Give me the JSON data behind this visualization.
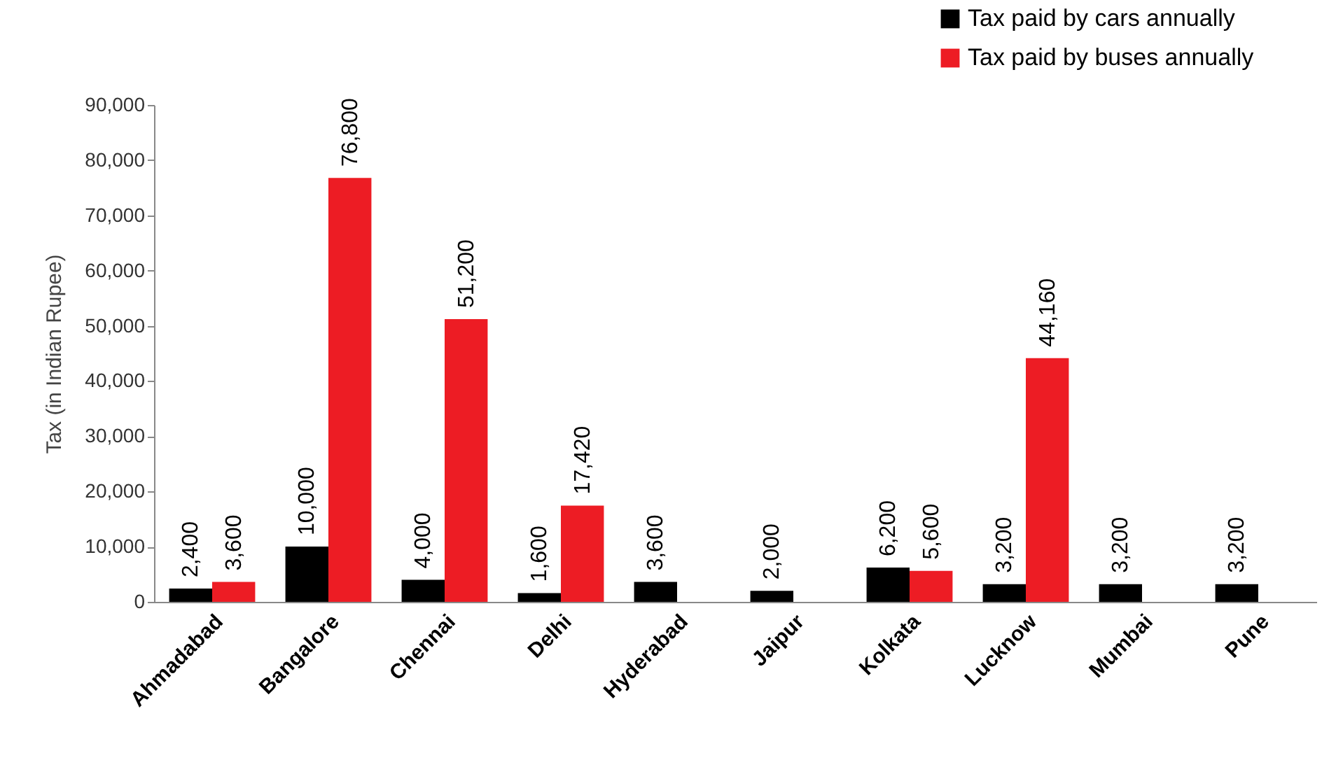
{
  "chart_data": {
    "type": "bar",
    "ylabel": "Tax (in  Indian Rupee)",
    "categories": [
      "Ahmadabad",
      "Bangalore",
      "Chennai",
      "Delhi",
      "Hyderabad",
      "Jaipur",
      "Kolkata",
      "Lucknow",
      "Mumbai",
      "Pune"
    ],
    "series": [
      {
        "name": "Tax paid by cars annually",
        "color": "#000000",
        "values": [
          2400,
          10000,
          4000,
          1600,
          3600,
          2000,
          6200,
          3200,
          3200,
          3200
        ],
        "value_labels": [
          "2,400",
          "10,000",
          "4,000",
          "1,600",
          "3,600",
          "2,000",
          "6,200",
          "3,200",
          "3,200",
          "3,200"
        ]
      },
      {
        "name": "Tax paid by buses annually",
        "color": "#ed1c24",
        "values": [
          3600,
          76800,
          51200,
          17420,
          null,
          null,
          5600,
          44160,
          null,
          null
        ],
        "value_labels": [
          "3,600",
          "76,800",
          "51,200",
          "17,420",
          null,
          null,
          "5,600",
          "44,160",
          null,
          null
        ]
      }
    ],
    "ylim": [
      0,
      90000
    ],
    "yticks": [
      {
        "value": 0,
        "label": "0"
      },
      {
        "value": 10000,
        "label": "10,000"
      },
      {
        "value": 20000,
        "label": "20,000"
      },
      {
        "value": 30000,
        "label": "30,000"
      },
      {
        "value": 40000,
        "label": "40,000"
      },
      {
        "value": 50000,
        "label": "50,000"
      },
      {
        "value": 60000,
        "label": "60,000"
      },
      {
        "value": 70000,
        "label": "70,000"
      },
      {
        "value": 80000,
        "label": "80,000"
      },
      {
        "value": 90000,
        "label": "90,000"
      }
    ],
    "legend": "top right",
    "grid": false
  }
}
